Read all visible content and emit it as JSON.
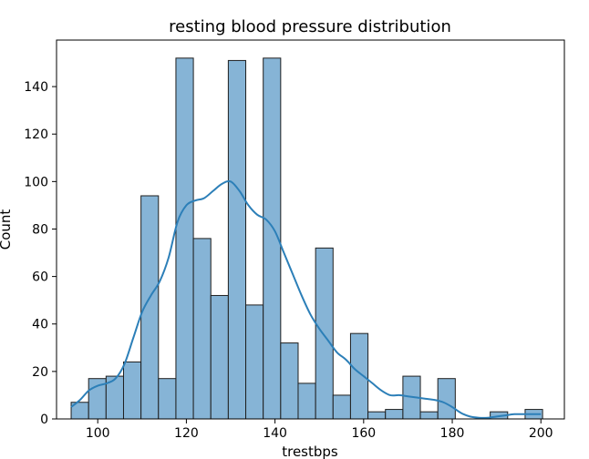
{
  "chart_data": {
    "type": "bar",
    "title": "resting blood pressure distribution",
    "xlabel": "trestbps",
    "ylabel": "Count",
    "xlim": [
      90.7,
      205.3
    ],
    "ylim": [
      0,
      159.6
    ],
    "xticks": [
      100,
      120,
      140,
      160,
      180,
      200
    ],
    "yticks": [
      0,
      20,
      40,
      60,
      80,
      100,
      120,
      140
    ],
    "grid": false,
    "legend": "none",
    "bin_edges": [
      94,
      97.94,
      101.88,
      105.82,
      109.76,
      113.7,
      117.64,
      121.58,
      125.52,
      129.46,
      133.4,
      137.34,
      141.28,
      145.22,
      149.16,
      153.1,
      157.04,
      160.98,
      164.92,
      168.86,
      172.8,
      176.74,
      180.68,
      184.62,
      188.56,
      192.5,
      196.44,
      200.38
    ],
    "series": [
      {
        "kind": "histogram",
        "values": [
          7,
          17,
          18,
          24,
          94,
          17,
          152,
          76,
          52,
          151,
          48,
          152,
          32,
          15,
          72,
          10,
          36,
          3,
          4,
          18,
          3,
          17,
          0,
          0,
          3,
          0,
          4
        ]
      },
      {
        "kind": "kde",
        "x": [
          94,
          96,
          98,
          100,
          102,
          104,
          106,
          108,
          110,
          112,
          114,
          116,
          118,
          120,
          122,
          124,
          126,
          128,
          130,
          132,
          134,
          136,
          138,
          140,
          142,
          144,
          146,
          148,
          150,
          152,
          154,
          156,
          158,
          160,
          162,
          164,
          166,
          168,
          170,
          172,
          174,
          176,
          178,
          180,
          182,
          184,
          186,
          188,
          190,
          192,
          194,
          196,
          198,
          200
        ],
        "values": [
          5,
          8,
          12,
          14,
          15,
          17,
          23,
          34,
          45,
          52,
          58,
          68,
          83,
          90,
          92,
          93,
          96,
          99,
          100,
          96,
          90,
          86,
          84,
          79,
          70,
          61,
          52,
          44,
          38,
          33,
          28,
          25,
          21,
          18,
          15,
          12,
          10,
          10,
          9.5,
          9,
          8.5,
          8,
          7,
          5,
          2.5,
          1,
          0.5,
          0.5,
          1,
          1.5,
          2,
          2,
          2,
          2
        ]
      }
    ]
  },
  "style": {
    "bar_fill": "#86b4d6",
    "bar_edge": "#1f1f1f",
    "kde_color": "#2c7fb8"
  }
}
